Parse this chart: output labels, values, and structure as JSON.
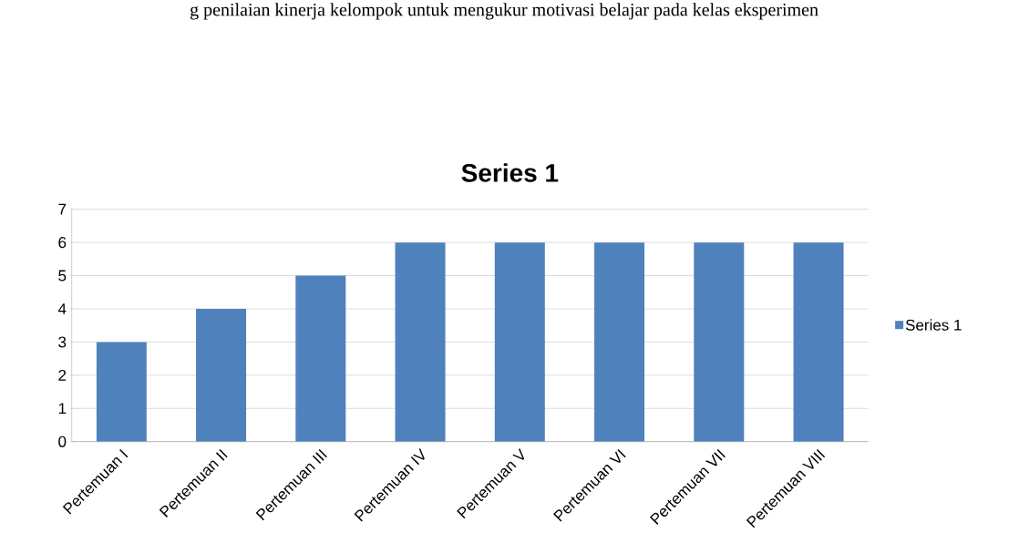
{
  "chart_data": {
    "type": "bar",
    "title": "Series 1",
    "annotations": [
      "g penilaian kinerja kelompok untuk mengukur motivasi belajar pada kelas eksperimen"
    ],
    "categories": [
      "Pertemuan I",
      "Pertemuan II",
      "Pertemuan III",
      "Pertemuan IV",
      "Pertemuan V",
      "Pertemuan VI",
      "Pertemuan VII",
      "Pertemuan VIII"
    ],
    "series": [
      {
        "name": "Series 1",
        "color": "#4f81bd",
        "values": [
          3,
          4,
          5,
          6,
          6,
          6,
          6,
          6
        ]
      }
    ],
    "ylim": [
      0,
      7
    ],
    "yticks": [
      0,
      1,
      2,
      3,
      4,
      5,
      6,
      7
    ],
    "grid": "y",
    "legend": "right"
  }
}
